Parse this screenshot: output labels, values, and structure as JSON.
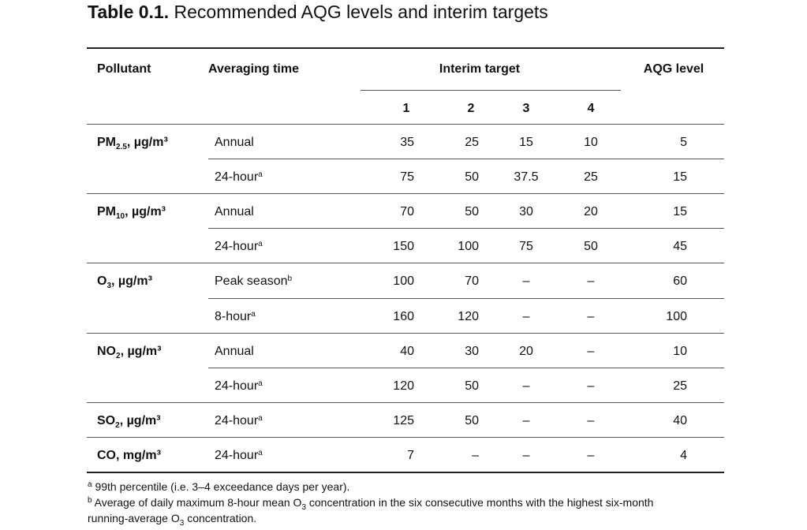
{
  "title": {
    "label": "Table 0.1.",
    "text": "Recommended AQG levels and interim targets"
  },
  "table": {
    "header": {
      "pollutant": "Pollutant",
      "averaging_time": "Averaging time",
      "interim_target": "Interim target",
      "aqg_level": "AQG level",
      "targets": [
        1,
        2,
        3,
        4
      ]
    },
    "rows": [
      {
        "pollutant": {
          "base": "PM",
          "sub": "2.5",
          "unit": ", µg/m³"
        },
        "entries": [
          {
            "time": "Annual",
            "values": [
              35,
              25,
              15,
              10,
              5
            ]
          },
          {
            "time": "24-hour",
            "note": "a",
            "values": [
              75,
              50,
              37.5,
              25,
              15
            ]
          }
        ]
      },
      {
        "pollutant": {
          "base": "PM",
          "sub": "10",
          "unit": ", µg/m³"
        },
        "entries": [
          {
            "time": "Annual",
            "values": [
              70,
              50,
              30,
              20,
              15
            ]
          },
          {
            "time": "24-hour",
            "note": "a",
            "values": [
              150,
              100,
              75,
              50,
              45
            ]
          }
        ]
      },
      {
        "pollutant": {
          "base": "O",
          "sub": "3",
          "unit": ", µg/m³"
        },
        "entries": [
          {
            "time": "Peak season",
            "note": "b",
            "values": [
              100,
              70,
              "–",
              "–",
              60
            ]
          },
          {
            "time": "8-hour",
            "note": "a",
            "values": [
              160,
              120,
              "–",
              "–",
              100
            ]
          }
        ]
      },
      {
        "pollutant": {
          "base": "NO",
          "sub": "2",
          "unit": ", µg/m³"
        },
        "entries": [
          {
            "time": "Annual",
            "values": [
              40,
              30,
              20,
              "–",
              10
            ]
          },
          {
            "time": "24-hour",
            "note": "a",
            "values": [
              120,
              50,
              "–",
              "–",
              25
            ]
          }
        ]
      },
      {
        "pollutant": {
          "base": "SO",
          "sub": "2",
          "unit": ", µg/m³"
        },
        "entries": [
          {
            "time": "24-hour",
            "note": "a",
            "values": [
              125,
              50,
              "–",
              "–",
              40
            ]
          }
        ]
      },
      {
        "pollutant": {
          "base": "CO",
          "unit": ", mg/m³"
        },
        "entries": [
          {
            "time": "24-hour",
            "note": "a",
            "values": [
              7,
              "–",
              "–",
              "–",
              4
            ]
          }
        ]
      }
    ]
  },
  "footnotes": [
    {
      "mark": "a",
      "segments": [
        {
          "text": " 99th percentile (i.e. 3–4 exceedance days per year)."
        }
      ]
    },
    {
      "mark": "b",
      "segments": [
        {
          "text": " Average of daily maximum 8-hour mean O"
        },
        {
          "sub": "3"
        },
        {
          "text": " concentration in the six consecutive months with the highest six-month"
        },
        {
          "break": "running-average O"
        },
        {
          "sub": "3"
        },
        {
          "text": " concentration."
        }
      ]
    }
  ]
}
